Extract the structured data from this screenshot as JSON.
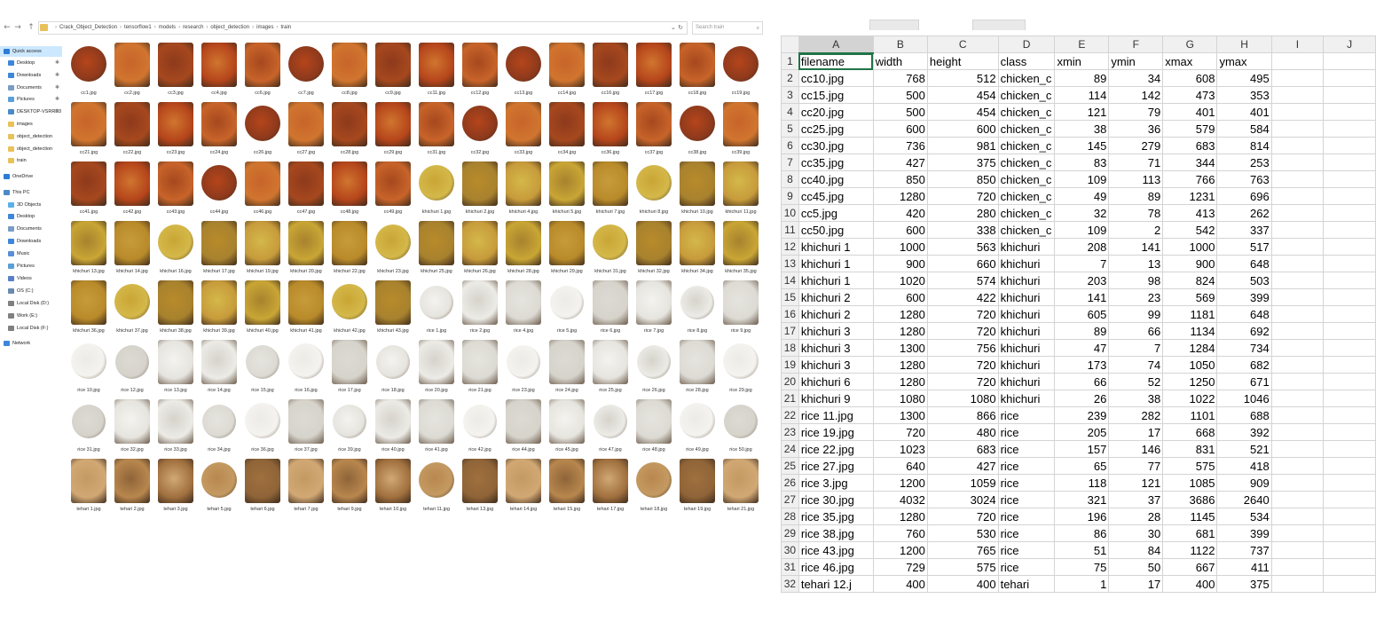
{
  "explorer": {
    "nav_buttons": [
      "←",
      "→",
      "↑"
    ],
    "breadcrumb": [
      "Crack_Object_Detection",
      "tensorflow1",
      "models",
      "research",
      "object_detection",
      "images",
      "train"
    ],
    "addr_tools": "⌄ ↻",
    "search_placeholder": "Search train",
    "nav_pane": [
      {
        "label": "Quick access",
        "icon": "star-icon",
        "color": "#2b7cd3",
        "pin": "",
        "selected": true
      },
      {
        "label": "Desktop",
        "icon": "desktop-icon",
        "color": "#3d86d9",
        "pin": "✱",
        "selected": false
      },
      {
        "label": "Downloads",
        "icon": "downloads-icon",
        "color": "#3d86d9",
        "pin": "✱",
        "selected": false
      },
      {
        "label": "Documents",
        "icon": "documents-icon",
        "color": "#7a9cc6",
        "pin": "✱",
        "selected": false
      },
      {
        "label": "Pictures",
        "icon": "pictures-icon",
        "color": "#5a9fd8",
        "pin": "✱",
        "selected": false
      },
      {
        "label": "DESKTOP-VSRRE3",
        "icon": "computer-icon",
        "color": "#4a8ac8",
        "pin": "✱",
        "selected": false
      },
      {
        "label": "images",
        "icon": "folder-icon",
        "color": "#e8c15a",
        "pin": "",
        "selected": false
      },
      {
        "label": "object_detection",
        "icon": "folder-icon",
        "color": "#e8c15a",
        "pin": "",
        "selected": false
      },
      {
        "label": "object_detection",
        "icon": "folder-icon",
        "color": "#e8c15a",
        "pin": "",
        "selected": false
      },
      {
        "label": "train",
        "icon": "folder-icon",
        "color": "#e8c15a",
        "pin": "",
        "selected": false
      },
      {
        "label": "OneDrive",
        "icon": "cloud-icon",
        "color": "#2b7cd3",
        "pin": "",
        "selected": false
      },
      {
        "label": "This PC",
        "icon": "computer-icon",
        "color": "#4a8ac8",
        "pin": "",
        "selected": false
      },
      {
        "label": "3D Objects",
        "icon": "cube-icon",
        "color": "#5ab0e8",
        "pin": "",
        "selected": false
      },
      {
        "label": "Desktop",
        "icon": "desktop-icon",
        "color": "#3d86d9",
        "pin": "",
        "selected": false
      },
      {
        "label": "Documents",
        "icon": "documents-icon",
        "color": "#7a9cc6",
        "pin": "",
        "selected": false
      },
      {
        "label": "Downloads",
        "icon": "downloads-icon",
        "color": "#3d86d9",
        "pin": "",
        "selected": false
      },
      {
        "label": "Music",
        "icon": "music-icon",
        "color": "#5a8fd8",
        "pin": "",
        "selected": false
      },
      {
        "label": "Pictures",
        "icon": "pictures-icon",
        "color": "#5a9fd8",
        "pin": "",
        "selected": false
      },
      {
        "label": "Videos",
        "icon": "videos-icon",
        "color": "#5a7fc8",
        "pin": "",
        "selected": false
      },
      {
        "label": "OS (C:)",
        "icon": "drive-icon",
        "color": "#6a8ab0",
        "pin": "",
        "selected": false
      },
      {
        "label": "Local Disk (D:)",
        "icon": "drive-icon",
        "color": "#808080",
        "pin": "",
        "selected": false
      },
      {
        "label": "Work (E:)",
        "icon": "drive-icon",
        "color": "#808080",
        "pin": "",
        "selected": false
      },
      {
        "label": "Local Disk (F:)",
        "icon": "drive-icon",
        "color": "#808080",
        "pin": "",
        "selected": false
      },
      {
        "label": "Network",
        "icon": "network-icon",
        "color": "#3d86d9",
        "pin": "",
        "selected": false
      }
    ],
    "files": [
      "cc1.jpg",
      "cc2.jpg",
      "cc3.jpg",
      "cc4.jpg",
      "cc6.jpg",
      "cc7.jpg",
      "cc8.jpg",
      "cc9.jpg",
      "cc11.jpg",
      "cc12.jpg",
      "cc13.jpg",
      "cc14.jpg",
      "cc16.jpg",
      "cc17.jpg",
      "cc18.jpg",
      "cc19.jpg",
      "cc21.jpg",
      "cc22.jpg",
      "cc23.jpg",
      "cc24.jpg",
      "cc26.jpg",
      "cc27.jpg",
      "cc28.jpg",
      "cc29.jpg",
      "cc31.jpg",
      "cc32.jpg",
      "cc33.jpg",
      "cc34.jpg",
      "cc36.jpg",
      "cc37.jpg",
      "cc38.jpg",
      "cc39.jpg",
      "cc41.jpg",
      "cc42.jpg",
      "cc43.jpg",
      "cc44.jpg",
      "cc46.jpg",
      "cc47.jpg",
      "cc48.jpg",
      "cc49.jpg",
      "khichuri 1.jpg",
      "khichuri 2.jpg",
      "khichuri 4.jpg",
      "khichuri 5.jpg",
      "khichuri 7.jpg",
      "khichuri 8.jpg",
      "khichuri 10.jpg",
      "khichuri 11.jpg",
      "khichuri 13.jpg",
      "khichuri 14.jpg",
      "khichuri 16.jpg",
      "khichuri 17.jpg",
      "khichuri 19.jpg",
      "khichuri 20.jpg",
      "khichuri 22.jpg",
      "khichuri 23.jpg",
      "khichuri 25.jpg",
      "khichuri 26.jpg",
      "khichuri 28.jpg",
      "khichuri 29.jpg",
      "khichuri 31.jpg",
      "khichuri 32.jpg",
      "khichuri 34.jpg",
      "khichuri 35.jpg",
      "khichuri 36.jpg",
      "khichuri 37.jpg",
      "khichuri 38.jpg",
      "khichuri 39.jpg",
      "khichuri 40.jpg",
      "khichuri 41.jpg",
      "khichuri 42.jpg",
      "khichuri 43.jpg",
      "rice 1.jpg",
      "rice 2.jpg",
      "rice 4.jpg",
      "rice 5.jpg",
      "rice 6.jpg",
      "rice 7.jpg",
      "rice 8.jpg",
      "rice 9.jpg",
      "rice 10.jpg",
      "rice 12.jpg",
      "rice 13.jpg",
      "rice 14.jpg",
      "rice 15.jpg",
      "rice 16.jpg",
      "rice 17.jpg",
      "rice 18.jpg",
      "rice 20.jpg",
      "rice 21.jpg",
      "rice 23.jpg",
      "rice 24.jpg",
      "rice 25.jpg",
      "rice 26.jpg",
      "rice 28.jpg",
      "rice 29.jpg",
      "rice 31.jpg",
      "rice 32.jpg",
      "rice 33.jpg",
      "rice 34.jpg",
      "rice 36.jpg",
      "rice 37.jpg",
      "rice 39.jpg",
      "rice 40.jpg",
      "rice 41.jpg",
      "rice 42.jpg",
      "rice 44.jpg",
      "rice 45.jpg",
      "rice 47.jpg",
      "rice 48.jpg",
      "rice 49.jpg",
      "rice 50.jpg",
      "tehari 1.jpg",
      "tehari 2.jpg",
      "tehari 3.jpg",
      "tehari 5.jpg",
      "tehari 6.jpg",
      "tehari 7.jpg",
      "tehari 9.jpg",
      "tehari 10.jpg",
      "tehari 11.jpg",
      "tehari 13.jpg",
      "tehari 14.jpg",
      "tehari 15.jpg",
      "tehari 17.jpg",
      "tehari 18.jpg",
      "tehari 19.jpg",
      "tehari 21.jpg"
    ],
    "thumb_colors": {
      "cc": [
        "#b5451b",
        "#c8642a",
        "#8e3a1c",
        "#d0752f",
        "#a6481e"
      ],
      "khichuri": [
        "#c9a635",
        "#b88a2a",
        "#d4b84a",
        "#a8822e",
        "#c79b3b"
      ],
      "rice": [
        "#ecebe6",
        "#dcdad3",
        "#f4f3ef",
        "#d6d3cb",
        "#e6e4de"
      ],
      "tehari": [
        "#b8874e",
        "#a0703e",
        "#c49a62",
        "#8f6438",
        "#d1a874"
      ]
    }
  },
  "excel": {
    "columns": [
      "A",
      "B",
      "C",
      "D",
      "E",
      "F",
      "G",
      "H",
      "I",
      "J"
    ],
    "rows": [
      [
        "filename",
        "width",
        "height",
        "class",
        "xmin",
        "ymin",
        "xmax",
        "ymax",
        "",
        ""
      ],
      [
        "cc10.jpg",
        "768",
        "512",
        "chicken_c",
        "89",
        "34",
        "608",
        "495",
        "",
        ""
      ],
      [
        "cc15.jpg",
        "500",
        "454",
        "chicken_c",
        "114",
        "142",
        "473",
        "353",
        "",
        ""
      ],
      [
        "cc20.jpg",
        "500",
        "454",
        "chicken_c",
        "121",
        "79",
        "401",
        "401",
        "",
        ""
      ],
      [
        "cc25.jpg",
        "600",
        "600",
        "chicken_c",
        "38",
        "36",
        "579",
        "584",
        "",
        ""
      ],
      [
        "cc30.jpg",
        "736",
        "981",
        "chicken_c",
        "145",
        "279",
        "683",
        "814",
        "",
        ""
      ],
      [
        "cc35.jpg",
        "427",
        "375",
        "chicken_c",
        "83",
        "71",
        "344",
        "253",
        "",
        ""
      ],
      [
        "cc40.jpg",
        "850",
        "850",
        "chicken_c",
        "109",
        "113",
        "766",
        "763",
        "",
        ""
      ],
      [
        "cc45.jpg",
        "1280",
        "720",
        "chicken_c",
        "49",
        "89",
        "1231",
        "696",
        "",
        ""
      ],
      [
        "cc5.jpg",
        "420",
        "280",
        "chicken_c",
        "32",
        "78",
        "413",
        "262",
        "",
        ""
      ],
      [
        "cc50.jpg",
        "600",
        "338",
        "chicken_c",
        "109",
        "2",
        "542",
        "337",
        "",
        ""
      ],
      [
        "khichuri 1",
        "1000",
        "563",
        "khichuri",
        "208",
        "141",
        "1000",
        "517",
        "",
        ""
      ],
      [
        "khichuri 1",
        "900",
        "660",
        "khichuri",
        "7",
        "13",
        "900",
        "648",
        "",
        ""
      ],
      [
        "khichuri 1",
        "1020",
        "574",
        "khichuri",
        "203",
        "98",
        "824",
        "503",
        "",
        ""
      ],
      [
        "khichuri 2",
        "600",
        "422",
        "khichuri",
        "141",
        "23",
        "569",
        "399",
        "",
        ""
      ],
      [
        "khichuri 2",
        "1280",
        "720",
        "khichuri",
        "605",
        "99",
        "1181",
        "648",
        "",
        ""
      ],
      [
        "khichuri 3",
        "1280",
        "720",
        "khichuri",
        "89",
        "66",
        "1134",
        "692",
        "",
        ""
      ],
      [
        "khichuri 3",
        "1300",
        "756",
        "khichuri",
        "47",
        "7",
        "1284",
        "734",
        "",
        ""
      ],
      [
        "khichuri 3",
        "1280",
        "720",
        "khichuri",
        "173",
        "74",
        "1050",
        "682",
        "",
        ""
      ],
      [
        "khichuri 6",
        "1280",
        "720",
        "khichuri",
        "66",
        "52",
        "1250",
        "671",
        "",
        ""
      ],
      [
        "khichuri 9",
        "1080",
        "1080",
        "khichuri",
        "26",
        "38",
        "1022",
        "1046",
        "",
        ""
      ],
      [
        "rice 11.jpg",
        "1300",
        "866",
        "rice",
        "239",
        "282",
        "1101",
        "688",
        "",
        ""
      ],
      [
        "rice 19.jpg",
        "720",
        "480",
        "rice",
        "205",
        "17",
        "668",
        "392",
        "",
        ""
      ],
      [
        "rice 22.jpg",
        "1023",
        "683",
        "rice",
        "157",
        "146",
        "831",
        "521",
        "",
        ""
      ],
      [
        "rice 27.jpg",
        "640",
        "427",
        "rice",
        "65",
        "77",
        "575",
        "418",
        "",
        ""
      ],
      [
        "rice 3.jpg",
        "1200",
        "1059",
        "rice",
        "118",
        "121",
        "1085",
        "909",
        "",
        ""
      ],
      [
        "rice 30.jpg",
        "4032",
        "3024",
        "rice",
        "321",
        "37",
        "3686",
        "2640",
        "",
        ""
      ],
      [
        "rice 35.jpg",
        "1280",
        "720",
        "rice",
        "196",
        "28",
        "1145",
        "534",
        "",
        ""
      ],
      [
        "rice 38.jpg",
        "760",
        "530",
        "rice",
        "86",
        "30",
        "681",
        "399",
        "",
        ""
      ],
      [
        "rice 43.jpg",
        "1200",
        "765",
        "rice",
        "51",
        "84",
        "1122",
        "737",
        "",
        ""
      ],
      [
        "rice 46.jpg",
        "729",
        "575",
        "rice",
        "75",
        "50",
        "667",
        "411",
        "",
        ""
      ],
      [
        "tehari 12.j",
        "400",
        "400",
        "tehari",
        "1",
        "17",
        "400",
        "375",
        "",
        ""
      ]
    ],
    "accent": "#217346"
  }
}
